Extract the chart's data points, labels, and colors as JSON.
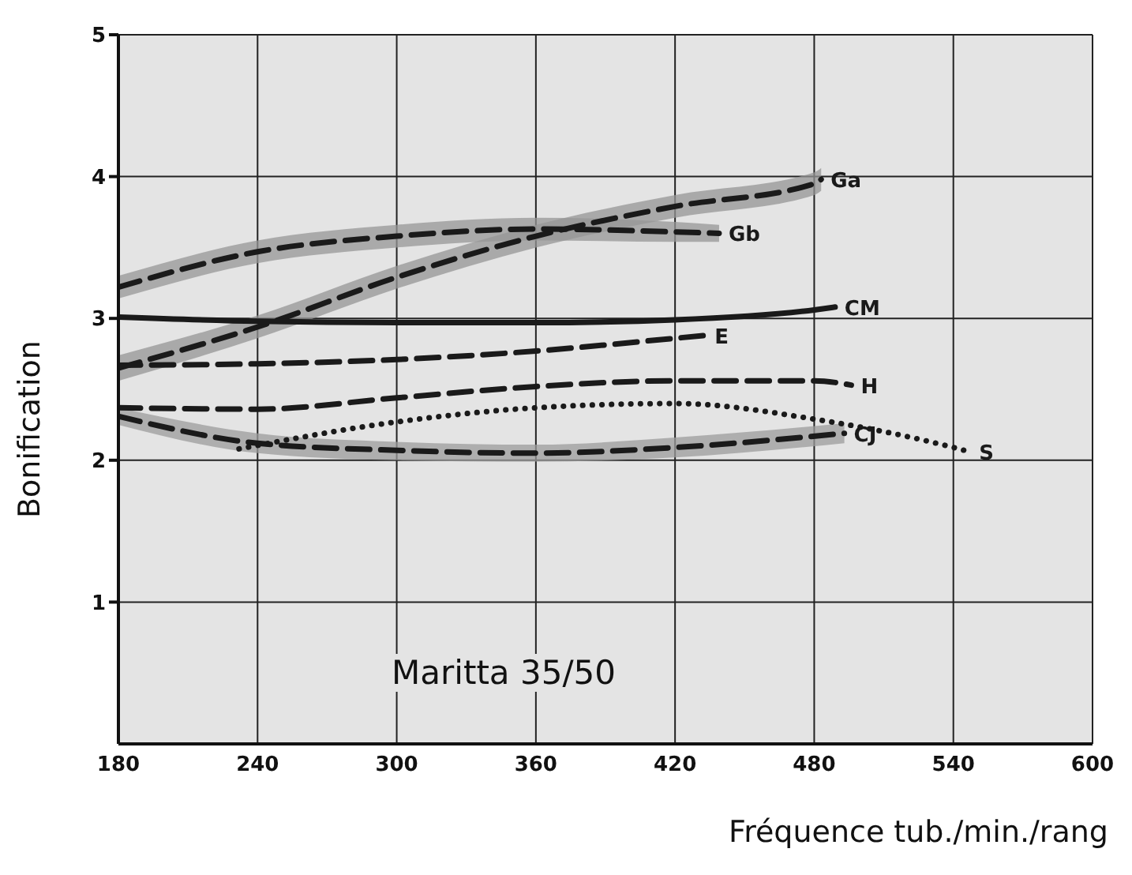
{
  "chart_data": {
    "type": "line",
    "xlabel": "Fréquence tub./min./rang",
    "ylabel": "Bonification",
    "annotations": [
      "Maritta 35/50"
    ],
    "xlim": [
      180,
      600
    ],
    "xticks": [
      180,
      240,
      300,
      360,
      420,
      480,
      540,
      600
    ],
    "ylim": [
      0,
      5
    ],
    "yticks": [
      1,
      2,
      3,
      4,
      5
    ],
    "grid": true,
    "legend": false,
    "marker": "none",
    "series": [
      {
        "name": "Ga",
        "color": "#1a1a1a",
        "line_style": "dashed",
        "x": [
          180,
          240,
          300,
          360,
          420,
          480,
          483
        ],
        "values": [
          2.65,
          2.94,
          3.29,
          3.58,
          3.79,
          3.95,
          3.98
        ],
        "lower": [
          2.56,
          2.86,
          3.21,
          3.5,
          3.71,
          3.87,
          3.9
        ],
        "upper": [
          2.74,
          3.02,
          3.37,
          3.66,
          3.87,
          4.03,
          4.06
        ]
      },
      {
        "name": "Gb",
        "color": "#1a1a1a",
        "line_style": "dashed",
        "x": [
          180,
          240,
          300,
          360,
          420,
          439
        ],
        "values": [
          3.22,
          3.47,
          3.58,
          3.63,
          3.61,
          3.6
        ],
        "lower": [
          3.14,
          3.39,
          3.5,
          3.55,
          3.54,
          3.54
        ],
        "upper": [
          3.3,
          3.55,
          3.66,
          3.71,
          3.68,
          3.66
        ]
      },
      {
        "name": "CM",
        "color": "#1a1a1a",
        "line_style": "solid",
        "x": [
          180,
          240,
          300,
          360,
          420,
          480,
          489
        ],
        "values": [
          3.01,
          2.98,
          2.97,
          2.97,
          2.99,
          3.06,
          3.08
        ]
      },
      {
        "name": "E",
        "color": "#1a1a1a",
        "line_style": "dashed",
        "x": [
          180,
          240,
          300,
          360,
          420,
          433
        ],
        "values": [
          2.67,
          2.68,
          2.71,
          2.77,
          2.86,
          2.88
        ]
      },
      {
        "name": "H",
        "color": "#1a1a1a",
        "line_style": "dashed",
        "x": [
          180,
          240,
          300,
          360,
          420,
          480,
          496
        ],
        "values": [
          2.37,
          2.36,
          2.44,
          2.52,
          2.56,
          2.56,
          2.53
        ]
      },
      {
        "name": "S",
        "color": "#1a1a1a",
        "line_style": "dotted",
        "x": [
          232,
          300,
          360,
          420,
          480,
          540,
          547
        ],
        "values": [
          2.08,
          2.27,
          2.37,
          2.4,
          2.29,
          2.09,
          2.06
        ]
      },
      {
        "name": "CJ",
        "color": "#1a1a1a",
        "line_style": "dashed",
        "x": [
          180,
          240,
          300,
          360,
          420,
          493
        ],
        "values": [
          2.31,
          2.12,
          2.07,
          2.05,
          2.09,
          2.19
        ],
        "lower": [
          2.25,
          2.05,
          2.0,
          1.99,
          2.02,
          2.12
        ],
        "upper": [
          2.37,
          2.19,
          2.13,
          2.11,
          2.16,
          2.26
        ]
      }
    ]
  }
}
